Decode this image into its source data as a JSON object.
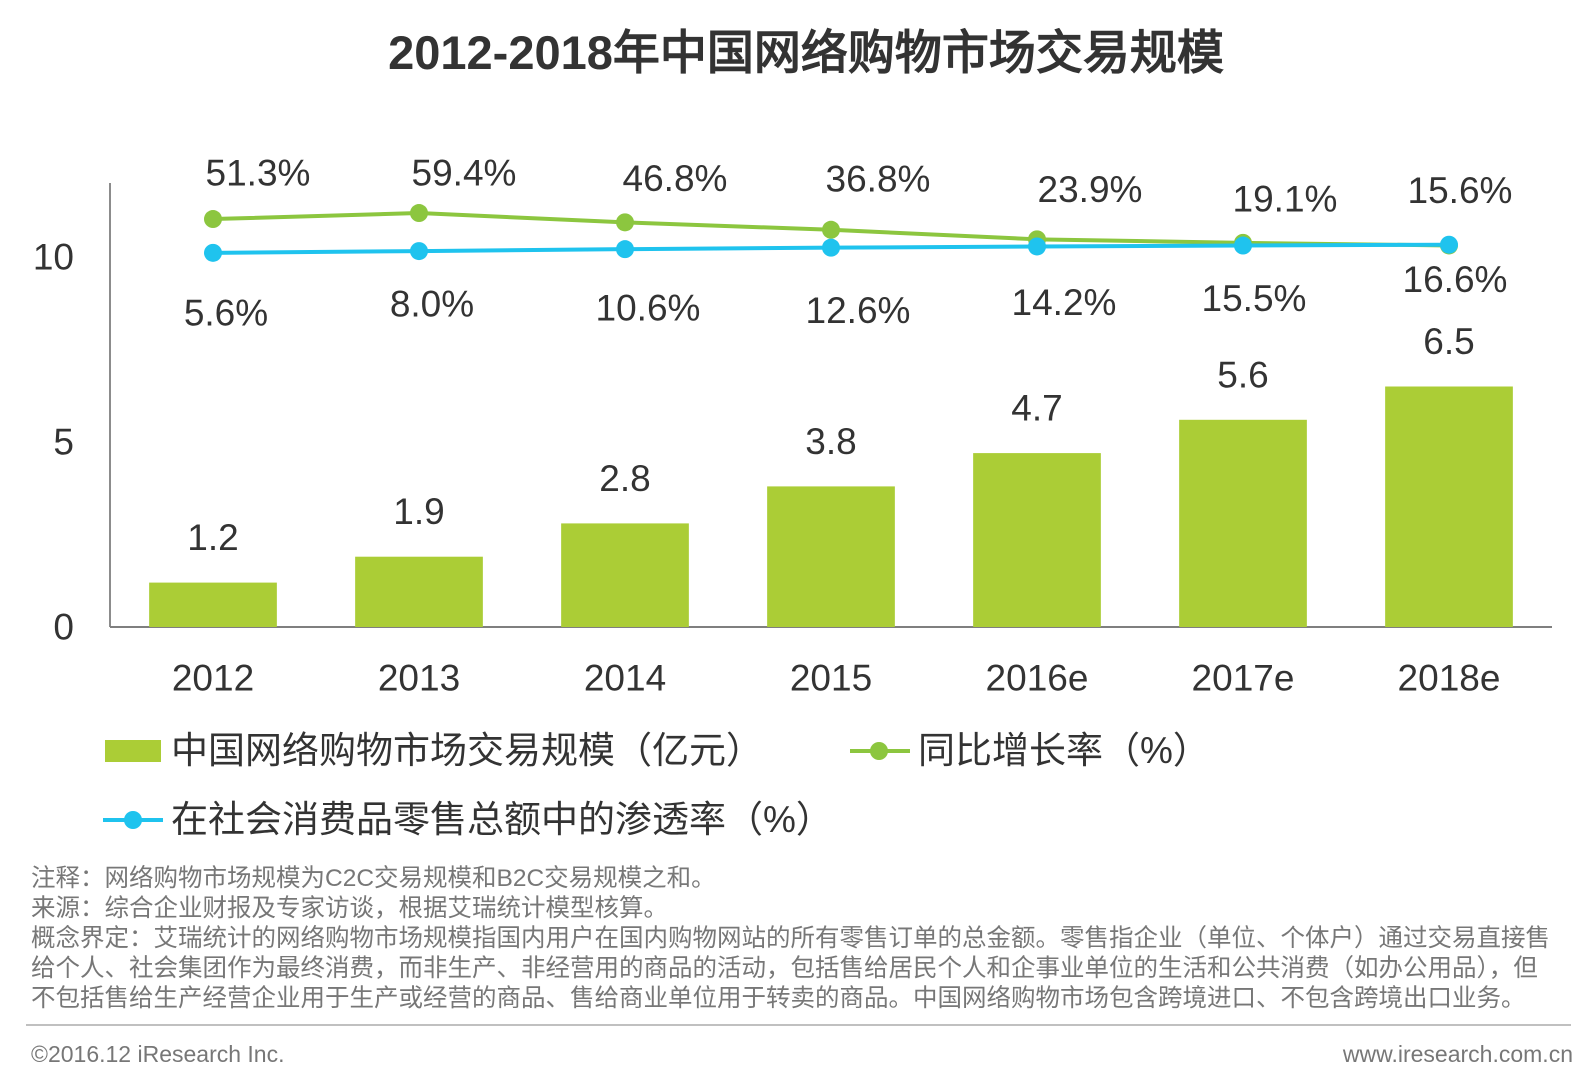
{
  "chart_data": {
    "type": "bar",
    "title": "2012-2018年中国网络购物市场交易规模",
    "categories": [
      "2012",
      "2013",
      "2014",
      "2015",
      "2016e",
      "2017e",
      "2018e"
    ],
    "ylim": [
      0,
      12
    ],
    "yticks": [
      0,
      5,
      10
    ],
    "y2lim": [
      -500,
      100
    ],
    "legend": "bottom",
    "series": [
      {
        "name": "中国网络购物市场交易规模（亿元）",
        "type": "bar",
        "values": [
          1.2,
          1.9,
          2.8,
          3.8,
          4.7,
          5.6,
          6.5
        ],
        "labels": [
          "1.2",
          "1.9",
          "2.8",
          "3.8",
          "4.7",
          "5.6",
          "6.5"
        ],
        "color": "#abcd36"
      },
      {
        "name": "同比增长率（%）",
        "type": "line",
        "secondary_axis": true,
        "values": [
          51.3,
          59.4,
          46.8,
          36.8,
          23.9,
          19.1,
          15.6
        ],
        "labels": [
          "51.3%",
          "59.4%",
          "46.8%",
          "36.8%",
          "23.9%",
          "19.1%",
          "15.6%"
        ],
        "color": "#8cc63f"
      },
      {
        "name": "在社会消费品零售总额中的渗透率（%）",
        "type": "line",
        "secondary_axis": true,
        "values": [
          5.6,
          8.0,
          10.6,
          12.6,
          14.2,
          15.5,
          16.6
        ],
        "labels": [
          "5.6%",
          "8.0%",
          "10.6%",
          "12.6%",
          "14.2%",
          "15.5%",
          "16.6%"
        ],
        "color": "#1fc3ee"
      }
    ]
  },
  "notes": {
    "remark": "注释：网络购物市场规模为C2C交易规模和B2C交易规模之和。",
    "source": "来源：综合企业财报及专家访谈，根据艾瑞统计模型核算。",
    "definition_lines": [
      "概念界定：艾瑞统计的网络购物市场规模指国内用户在国内购物网站的所有零售订单的总金额。零售指企业（单位、个体户）通过交易直接售",
      "给个人、社会集团作为最终消费，而非生产、非经营用的商品的活动，包括售给居民个人和企事业单位的生活和公共消费（如办公用品），但",
      "不包括售给生产经营企业用于生产或经营的商品、售给商业单位用于转卖的商品。中国网络购物市场包含跨境进口、不包含跨境出口业务。"
    ]
  },
  "footer": {
    "copyright": "©2016.12 iResearch Inc.",
    "website": "www.iresearch.com.cn"
  }
}
